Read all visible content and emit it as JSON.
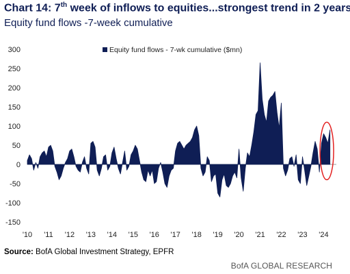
{
  "header": {
    "title_prefix": "Chart 14: 7",
    "title_sup": "th",
    "title_suffix": " week of inflows to equities...strongest trend in 2 years",
    "subtitle": "Equity fund flows -7-week cumulative"
  },
  "footer": {
    "source_label": "Source:",
    "source_text": " BofA Global Investment Strategy, EPFR",
    "brand": "BofA GLOBAL RESEARCH"
  },
  "colors": {
    "series": "#0f1e55",
    "highlight_circle": "#e32020",
    "axis": "#999999"
  },
  "chart_data": {
    "type": "area",
    "title": "Chart 14: 7th week of inflows to equities...strongest trend in 2 years",
    "subtitle": "Equity fund flows -7-week cumulative",
    "legend": {
      "position": "top-center",
      "entries": [
        "Equity fund flows - 7-wk cumulative ($mn)"
      ]
    },
    "ylim": [
      -150,
      300
    ],
    "yticks": [
      -150,
      -100,
      -50,
      0,
      50,
      100,
      150,
      200,
      250,
      300
    ],
    "xlim": [
      2010,
      2024.6
    ],
    "xticks": [
      {
        "value": 2010,
        "label": "'10"
      },
      {
        "value": 2011,
        "label": "'11"
      },
      {
        "value": 2012,
        "label": "'12"
      },
      {
        "value": 2013,
        "label": "'13"
      },
      {
        "value": 2014,
        "label": "'14"
      },
      {
        "value": 2015,
        "label": "'15"
      },
      {
        "value": 2016,
        "label": "'16"
      },
      {
        "value": 2017,
        "label": "'17"
      },
      {
        "value": 2018,
        "label": "'18"
      },
      {
        "value": 2019,
        "label": "'19"
      },
      {
        "value": 2020,
        "label": "'20"
      },
      {
        "value": 2021,
        "label": "'21"
      },
      {
        "value": 2022,
        "label": "'22"
      },
      {
        "value": 2023,
        "label": "'23"
      },
      {
        "value": 2024,
        "label": "'24"
      }
    ],
    "grid": false,
    "series": [
      {
        "name": "Equity fund flows - 7-wk cumulative ($mn)",
        "x": [
          2010.0,
          2010.1,
          2010.2,
          2010.3,
          2010.4,
          2010.5,
          2010.6,
          2010.7,
          2010.8,
          2010.9,
          2011.0,
          2011.1,
          2011.2,
          2011.3,
          2011.4,
          2011.5,
          2011.6,
          2011.7,
          2011.8,
          2011.9,
          2012.0,
          2012.1,
          2012.2,
          2012.3,
          2012.4,
          2012.5,
          2012.6,
          2012.7,
          2012.8,
          2012.9,
          2013.0,
          2013.1,
          2013.2,
          2013.3,
          2013.4,
          2013.5,
          2013.6,
          2013.7,
          2013.8,
          2013.9,
          2014.0,
          2014.1,
          2014.2,
          2014.3,
          2014.4,
          2014.5,
          2014.6,
          2014.7,
          2014.8,
          2014.9,
          2015.0,
          2015.1,
          2015.2,
          2015.3,
          2015.4,
          2015.5,
          2015.6,
          2015.7,
          2015.8,
          2015.9,
          2016.0,
          2016.1,
          2016.2,
          2016.3,
          2016.4,
          2016.5,
          2016.6,
          2016.7,
          2016.8,
          2016.9,
          2017.0,
          2017.1,
          2017.2,
          2017.3,
          2017.4,
          2017.5,
          2017.6,
          2017.7,
          2017.8,
          2017.9,
          2018.0,
          2018.1,
          2018.2,
          2018.3,
          2018.4,
          2018.5,
          2018.6,
          2018.7,
          2018.8,
          2018.9,
          2019.0,
          2019.1,
          2019.2,
          2019.3,
          2019.4,
          2019.5,
          2019.6,
          2019.7,
          2019.8,
          2019.9,
          2020.0,
          2020.1,
          2020.2,
          2020.3,
          2020.4,
          2020.5,
          2020.6,
          2020.7,
          2020.8,
          2020.9,
          2021.0,
          2021.1,
          2021.2,
          2021.3,
          2021.4,
          2021.5,
          2021.6,
          2021.7,
          2021.8,
          2021.9,
          2022.0,
          2022.1,
          2022.2,
          2022.3,
          2022.4,
          2022.5,
          2022.6,
          2022.7,
          2022.8,
          2022.9,
          2023.0,
          2023.1,
          2023.2,
          2023.3,
          2023.4,
          2023.5,
          2023.6,
          2023.7,
          2023.8,
          2023.9,
          2024.0,
          2024.1,
          2024.2,
          2024.3
        ],
        "values": [
          10,
          25,
          15,
          -15,
          5,
          -10,
          20,
          30,
          35,
          20,
          45,
          50,
          35,
          -5,
          -20,
          -40,
          -30,
          -10,
          5,
          15,
          35,
          40,
          20,
          -5,
          -15,
          -20,
          5,
          20,
          -10,
          -25,
          55,
          60,
          45,
          -15,
          -30,
          -10,
          20,
          25,
          -15,
          -5,
          30,
          45,
          15,
          -10,
          -25,
          5,
          35,
          -15,
          -5,
          25,
          35,
          50,
          40,
          10,
          -20,
          -40,
          -45,
          -15,
          -30,
          -15,
          -50,
          -45,
          -10,
          5,
          -20,
          -50,
          -60,
          -30,
          -15,
          -10,
          35,
          55,
          60,
          50,
          40,
          50,
          55,
          60,
          70,
          90,
          100,
          75,
          -10,
          -30,
          -20,
          20,
          10,
          -45,
          -30,
          -25,
          -75,
          -85,
          -40,
          -25,
          -55,
          -60,
          -50,
          -30,
          -20,
          -35,
          40,
          -35,
          -70,
          -10,
          30,
          20,
          50,
          85,
          130,
          140,
          265,
          170,
          130,
          110,
          165,
          175,
          180,
          190,
          135,
          95,
          160,
          -10,
          -30,
          -15,
          15,
          20,
          -5,
          25,
          -40,
          -50,
          20,
          -15,
          -55,
          -30,
          -5,
          30,
          60,
          40,
          -20,
          55,
          80,
          70,
          55,
          90
        ]
      }
    ],
    "annotations": [
      {
        "type": "ellipse",
        "note": "highlight of latest inflows",
        "x_center": 2024.15,
        "y_center": 35
      }
    ]
  }
}
